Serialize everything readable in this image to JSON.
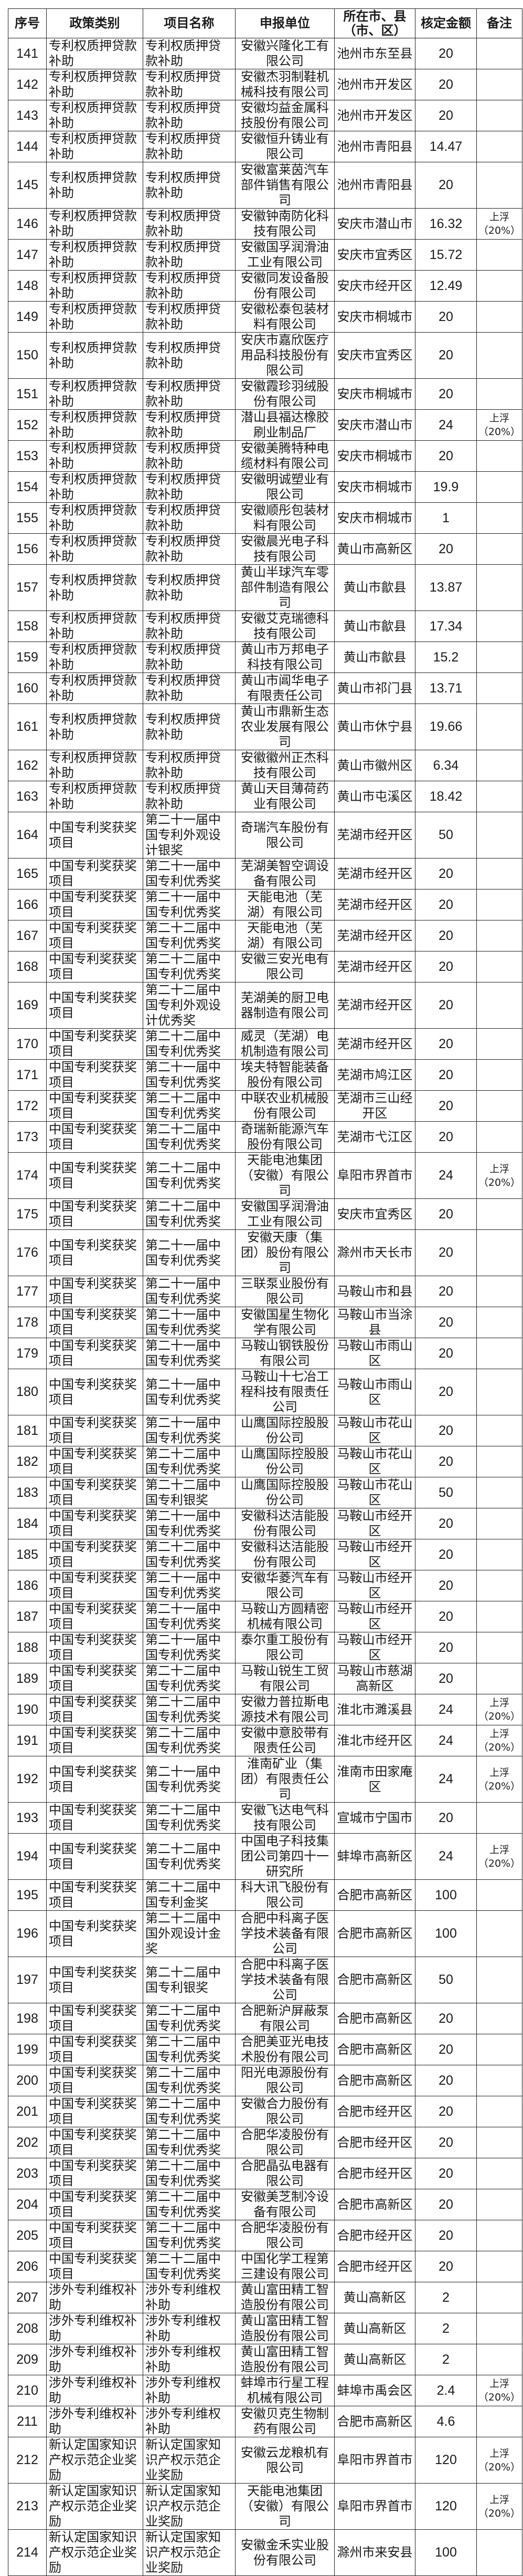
{
  "header": {
    "columns": [
      "序号",
      "政策类别",
      "项目名称",
      "申报单位",
      "所在市、县（市、区）",
      "核定金额",
      "备注"
    ]
  },
  "rows": [
    [
      "141",
      "专利权质押贷款补助",
      "专利权质押贷款补助",
      "安徽兴隆化工有限公司",
      "池州市东至县",
      "20",
      ""
    ],
    [
      "142",
      "专利权质押贷款补助",
      "专利权质押贷款补助",
      "安徽杰羽制鞋机械科技有限公司",
      "池州市开发区",
      "20",
      ""
    ],
    [
      "143",
      "专利权质押贷款补助",
      "专利权质押贷款补助",
      "安徽均益金属科技股份有限公司",
      "池州市开发区",
      "20",
      ""
    ],
    [
      "144",
      "专利权质押贷款补助",
      "专利权质押贷款补助",
      "安徽恒升铸业有限公司",
      "池州市青阳县",
      "14.47",
      ""
    ],
    [
      "145",
      "专利权质押贷款补助",
      "专利权质押贷款补助",
      "安徽富莱茵汽车部件销售有限公司",
      "池州市青阳县",
      "20",
      ""
    ],
    [
      "146",
      "专利权质押贷款补助",
      "专利权质押贷款补助",
      "安徽钟南防化科技有限公司",
      "安庆市潜山市",
      "16.32",
      "上浮\n（20%）"
    ],
    [
      "147",
      "专利权质押贷款补助",
      "专利权质押贷款补助",
      "安徽国孚润滑油工业有限公司",
      "安庆市宜秀区",
      "15.72",
      ""
    ],
    [
      "148",
      "专利权质押贷款补助",
      "专利权质押贷款补助",
      "安徽同发设备股份有限公司",
      "安庆市经开区",
      "12.49",
      ""
    ],
    [
      "149",
      "专利权质押贷款补助",
      "专利权质押贷款补助",
      "安徽松泰包装材料有限公司",
      "安庆市桐城市",
      "20",
      ""
    ],
    [
      "150",
      "专利权质押贷款补助",
      "专利权质押贷款补助",
      "安庆市嘉欣医疗用品科技股份有限公司",
      "安庆市宜秀区",
      "20",
      ""
    ],
    [
      "151",
      "专利权质押贷款补助",
      "专利权质押贷款补助",
      "安徽霞珍羽绒股份有限公司",
      "安庆市桐城市",
      "20",
      ""
    ],
    [
      "152",
      "专利权质押贷款补助",
      "专利权质押贷款补助",
      "潜山县福达橡胶刷业制品厂",
      "安庆市潜山市",
      "24",
      "上浮\n（20%）"
    ],
    [
      "153",
      "专利权质押贷款补助",
      "专利权质押贷款补助",
      "安徽美腾特种电缆材料有限公司",
      "安庆市桐城市",
      "20",
      ""
    ],
    [
      "154",
      "专利权质押贷款补助",
      "专利权质押贷款补助",
      "安徽明诚塑业有限公司",
      "安庆市桐城市",
      "19.9",
      ""
    ],
    [
      "155",
      "专利权质押贷款补助",
      "专利权质押贷款补助",
      "安徽顺彤包装材料有限公司",
      "安庆市桐城市",
      "1",
      ""
    ],
    [
      "156",
      "专利权质押贷款补助",
      "专利权质押贷款补助",
      "安徽晨光电子科技有限公司",
      "黄山市高新区",
      "20",
      ""
    ],
    [
      "157",
      "专利权质押贷款补助",
      "专利权质押贷款补助",
      "黄山半球汽车零部件制造有限公司",
      "黄山市歙县",
      "13.87",
      ""
    ],
    [
      "158",
      "专利权质押贷款补助",
      "专利权质押贷款补助",
      "安徽艾克瑞德科技有限公司",
      "黄山市歙县",
      "17.34",
      ""
    ],
    [
      "159",
      "专利权质押贷款补助",
      "专利权质押贷款补助",
      "黄山市万邦电子科技有限公司",
      "黄山市歙县",
      "15.2",
      ""
    ],
    [
      "160",
      "专利权质押贷款补助",
      "专利权质押贷款补助",
      "黄山市阊华电子有限责任公司",
      "黄山市祁门县",
      "13.71",
      ""
    ],
    [
      "161",
      "专利权质押贷款补助",
      "专利权质押贷款补助",
      "黄山市鼎新生态农业发展有限公司",
      "黄山市休宁县",
      "19.66",
      ""
    ],
    [
      "162",
      "专利权质押贷款补助",
      "专利权质押贷款补助",
      "安徽徽州正杰科技有限公司",
      "黄山市徽州区",
      "6.34",
      ""
    ],
    [
      "163",
      "专利权质押贷款补助",
      "专利权质押贷款补助",
      "黄山天目薄荷药业有限公司",
      "黄山市屯溪区",
      "18.42",
      ""
    ],
    [
      "164",
      "中国专利奖获奖项目",
      "第二十一届中国专利外观设计银奖",
      "奇瑞汽车股份有限公司",
      "芜湖市经开区",
      "50",
      ""
    ],
    [
      "165",
      "中国专利奖获奖项目",
      "第二十一届中国专利优秀奖",
      "芜湖美智空调设备有限公司",
      "芜湖市经开区",
      "20",
      ""
    ],
    [
      "166",
      "中国专利奖获奖项目",
      "第二十一届中国专利优秀奖",
      "天能电池（芜湖）有限公司",
      "芜湖市经开区",
      "20",
      ""
    ],
    [
      "167",
      "中国专利奖获奖项目",
      "第二十二届中国专利优秀奖",
      "天能电池（芜湖）有限公司",
      "芜湖市经开区",
      "20",
      ""
    ],
    [
      "168",
      "中国专利奖获奖项目",
      "第二十二届中国专利优秀奖",
      "安徽三安光电有限公司",
      "芜湖市经开区",
      "20",
      ""
    ],
    [
      "169",
      "中国专利奖获奖项目",
      "第二十二届中国专利外观设计优秀奖",
      "芜湖美的厨卫电器制造有限公司",
      "芜湖市经开区",
      "20",
      ""
    ],
    [
      "170",
      "中国专利奖获奖项目",
      "第二十二届中国专利优秀奖",
      "威灵（芜湖）电机制造有限公司",
      "芜湖市经开区",
      "20",
      ""
    ],
    [
      "171",
      "中国专利奖获奖项目",
      "第二十一届中国专利优秀奖",
      "埃夫特智能装备股份有限公司",
      "芜湖市鸠江区",
      "20",
      ""
    ],
    [
      "172",
      "中国专利奖获奖项目",
      "第二十二届中国专利优秀奖",
      "中联农业机械股份有限公司",
      "芜湖市三山经开区",
      "20",
      ""
    ],
    [
      "173",
      "中国专利奖获奖项目",
      "第二十二届中国专利优秀奖",
      "奇瑞新能源汽车股份有限公司",
      "芜湖市弋江区",
      "20",
      ""
    ],
    [
      "174",
      "中国专利奖获奖项目",
      "第二十二届中国专利优秀奖",
      "天能电池集团（安徽）有限公司",
      "阜阳市界首市",
      "24",
      "上浮\n（20%）"
    ],
    [
      "175",
      "中国专利奖获奖项目",
      "第二十二届中国专利优秀奖",
      "安徽国孚润滑油工业有限公司",
      "安庆市宜秀区",
      "20",
      ""
    ],
    [
      "176",
      "中国专利奖获奖项目",
      "第二十一届中国专利优秀奖",
      "安徽天康（集团）股份有限公司",
      "滁州市天长市",
      "20",
      ""
    ],
    [
      "177",
      "中国专利奖获奖项目",
      "第二十一届中国专利优秀奖",
      "三联泵业股份有限公司",
      "马鞍山市和县",
      "20",
      ""
    ],
    [
      "178",
      "中国专利奖获奖项目",
      "第二十一届中国专利优秀奖",
      "安徽国星生物化学有限公司",
      "马鞍山市当涂县",
      "20",
      ""
    ],
    [
      "179",
      "中国专利奖获奖项目",
      "第二十一届中国专利优秀奖",
      "马鞍山钢铁股份有限公司",
      "马鞍山市雨山区",
      "20",
      ""
    ],
    [
      "180",
      "中国专利奖获奖项目",
      "第二十一届中国专利优秀奖",
      "马鞍山十七冶工程科技有限责任公司",
      "马鞍山市雨山区",
      "20",
      ""
    ],
    [
      "181",
      "中国专利奖获奖项目",
      "第二十一届中国专利优秀奖",
      "山鹰国际控股股份公司",
      "马鞍山市花山区",
      "20",
      ""
    ],
    [
      "182",
      "中国专利奖获奖项目",
      "第二十二届中国专利优秀奖",
      "山鹰国际控股股份公司",
      "马鞍山市花山区",
      "20",
      ""
    ],
    [
      "183",
      "中国专利奖获奖项目",
      "第二十二届中国专利银奖",
      "山鹰国际控股股份公司",
      "马鞍山市花山区",
      "50",
      ""
    ],
    [
      "184",
      "中国专利奖获奖项目",
      "第二十一届中国专利优秀奖",
      "安徽科达洁能股份有限公司",
      "马鞍山市经开区",
      "20",
      ""
    ],
    [
      "185",
      "中国专利奖获奖项目",
      "第二十二届中国专利优秀奖",
      "安徽科达洁能股份有限公司",
      "马鞍山市经开区",
      "20",
      ""
    ],
    [
      "186",
      "中国专利奖获奖项目",
      "第二十一届中国专利优秀奖",
      "安徽华菱汽车有限公司",
      "马鞍山市经开区",
      "20",
      ""
    ],
    [
      "187",
      "中国专利奖获奖项目",
      "第二十一届中国专利优秀奖",
      "马鞍山方圆精密机械有限公司",
      "马鞍山市经开区",
      "20",
      ""
    ],
    [
      "188",
      "中国专利奖获奖项目",
      "第二十一届中国专利优秀奖",
      "泰尔重工股份有限公司",
      "马鞍山市经开区",
      "20",
      ""
    ],
    [
      "189",
      "中国专利奖获奖项目",
      "第二十二届中国专利优秀奖",
      "马鞍山锐生工贸有限公司",
      "马鞍山市慈湖高新区",
      "20",
      ""
    ],
    [
      "190",
      "中国专利奖获奖项目",
      "第二十二届中国专利优秀奖",
      "安徽力普拉斯电源技术有限公司",
      "淮北市濉溪县",
      "24",
      "上浮\n（20%）"
    ],
    [
      "191",
      "中国专利奖获奖项目",
      "第二十二届中国专利优秀奖",
      "安徽中意胶带有限责任公司",
      "淮北市经开区",
      "24",
      "上浮\n（20%）"
    ],
    [
      "192",
      "中国专利奖获奖项目",
      "第二十一届中国专利优秀奖",
      "淮南矿业（集团）有限责任公司",
      "淮南市田家庵区",
      "24",
      "上浮\n（20%）"
    ],
    [
      "193",
      "中国专利奖获奖项目",
      "第二十二届中国专利优秀奖",
      "安徽飞达电气科技有限公司",
      "宣城市宁国市",
      "20",
      ""
    ],
    [
      "194",
      "中国专利奖获奖项目",
      "第二十二届中国专利优秀奖",
      "中国电子科技集团公司第四十一研究所",
      "蚌埠市高新区",
      "24",
      "上浮\n（20%）"
    ],
    [
      "195",
      "中国专利奖获奖项目",
      "第二十二届中国专利金奖",
      "科大讯飞股份有限公司",
      "合肥市高新区",
      "100",
      ""
    ],
    [
      "196",
      "中国专利奖获奖项目",
      "第二十二届中国外观设计金奖",
      "合肥中科离子医学技术装备有限公司",
      "合肥市高新区",
      "100",
      ""
    ],
    [
      "197",
      "中国专利奖获奖项目",
      "第二十二届中国专利银奖",
      "合肥中科离子医学技术装备有限公司",
      "合肥市高新区",
      "50",
      ""
    ],
    [
      "198",
      "中国专利奖获奖项目",
      "第二十二届中国专利优秀奖",
      "合肥新沪屏蔽泵有限公司",
      "合肥市高新区",
      "20",
      ""
    ],
    [
      "199",
      "中国专利奖获奖项目",
      "第二十二届中国专利优秀奖",
      "合肥美亚光电技术股份有限公司",
      "合肥市高新区",
      "20",
      ""
    ],
    [
      "200",
      "中国专利奖获奖项目",
      "第二十二届中国专利优秀奖",
      "阳光电源股份有限公司",
      "合肥市高新区",
      "20",
      ""
    ],
    [
      "201",
      "中国专利奖获奖项目",
      "第二十二届中国专利优秀奖",
      "安徽合力股份有限公司",
      "合肥市经开区",
      "20",
      ""
    ],
    [
      "202",
      "中国专利奖获奖项目",
      "第二十二届中国专利优秀奖",
      "合肥华凌股份有限公司",
      "合肥市经开区",
      "20",
      ""
    ],
    [
      "203",
      "中国专利奖获奖项目",
      "第二十二届中国专利优秀奖",
      "合肥晶弘电器有限公司",
      "合肥市经开区",
      "20",
      ""
    ],
    [
      "204",
      "中国专利奖获奖项目",
      "第二十二届中国专利优秀奖",
      "安徽美芝制冷设备有限公司",
      "合肥市高新区",
      "20",
      ""
    ],
    [
      "205",
      "中国专利奖获奖项目",
      "第二十二届中国专利优秀奖",
      "合肥华凌股份有限公司",
      "合肥市经开区",
      "20",
      ""
    ],
    [
      "206",
      "中国专利奖获奖项目",
      "第二十二届中国专利优秀奖",
      "中国化学工程第三建设有限公司",
      "合肥市经开区",
      "20",
      ""
    ],
    [
      "207",
      "涉外专利维权补助",
      "涉外专利维权补助",
      "黄山富田精工智造股份有限公司",
      "黄山高新区",
      "2",
      ""
    ],
    [
      "208",
      "涉外专利维权补助",
      "涉外专利维权补助",
      "黄山富田精工智造股份有限公司",
      "黄山高新区",
      "2",
      ""
    ],
    [
      "209",
      "涉外专利维权补助",
      "涉外专利维权补助",
      "黄山富田精工智造股份有限公司",
      "黄山高新区",
      "2",
      ""
    ],
    [
      "210",
      "涉外专利维权补助",
      "涉外专利维权补助",
      "蚌埠市行星工程机械有限公司",
      "蚌埠市禹会区",
      "2.4",
      "上浮\n（20%）"
    ],
    [
      "211",
      "涉外专利维权补助",
      "涉外专利维权补助",
      "安徽贝克生物制药有限公司",
      "合肥市高新区",
      "4.6",
      ""
    ],
    [
      "212",
      "新认定国家知识产权示范企业奖励",
      "新认定国家知识产权示范企业奖励",
      "安徽云龙粮机有限公司",
      "阜阳市界首市",
      "120",
      "上浮\n（20%）"
    ],
    [
      "213",
      "新认定国家知识产权示范企业奖励",
      "新认定国家知识产权示范企业奖励",
      "天能电池集团（安徽）有限公司",
      "阜阳市界首市",
      "120",
      "上浮\n（20%）"
    ],
    [
      "214",
      "新认定国家知识产权示范企业奖励",
      "新认定国家知识产权示范企业奖励",
      "安徽金禾实业股份有限公司",
      "滁州市来安县",
      "100",
      ""
    ]
  ]
}
